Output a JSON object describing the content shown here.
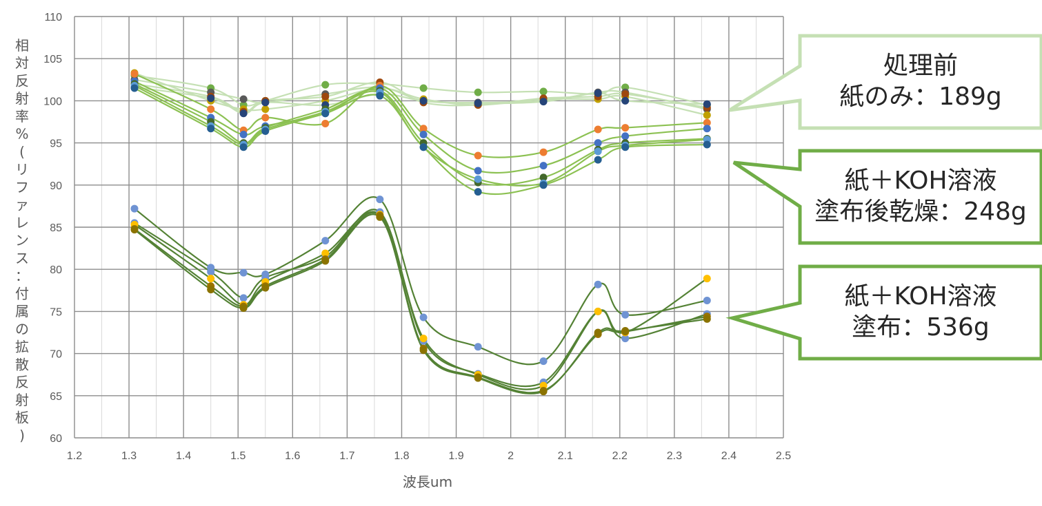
{
  "chart_data": {
    "type": "scatter",
    "xlabel": "波長um",
    "ylabel": "相対反射率%(リファレンス：付属の拡散反射板)",
    "xlim": [
      1.2,
      2.5
    ],
    "ylim": [
      60,
      110
    ],
    "xticks": [
      "1.2",
      "1.3",
      "1.4",
      "1.5",
      "1.6",
      "1.7",
      "1.8",
      "1.9",
      "2",
      "2.1",
      "2.2",
      "2.3",
      "2.4",
      "2.5"
    ],
    "yticks": [
      "60",
      "65",
      "70",
      "75",
      "80",
      "85",
      "90",
      "95",
      "100",
      "105",
      "110"
    ],
    "grid": true,
    "x": [
      1.31,
      1.45,
      1.51,
      1.55,
      1.66,
      1.76,
      1.84,
      1.94,
      2.06,
      2.16,
      2.21,
      2.36
    ],
    "groups": [
      {
        "callout": "処理前\n紙のみ：189g",
        "line_color": "#C5E0B4",
        "series": [
          {
            "values": [
              103.0,
              101.5,
              99.5,
              100.0,
              101.9,
              102.0,
              101.5,
              101.0,
              101.1,
              100.8,
              101.6,
              99.5
            ],
            "marker": "#70AD47"
          },
          {
            "values": [
              102.5,
              101.0,
              100.2,
              99.8,
              100.8,
              101.6,
              100.0,
              99.8,
              100.0,
              101.0,
              101.0,
              99.0
            ],
            "marker": "#595959"
          },
          {
            "values": [
              103.3,
              100.0,
              99.0,
              99.0,
              100.0,
              101.5,
              100.2,
              99.5,
              100.2,
              100.2,
              100.5,
              98.3
            ],
            "marker": "#C0A000"
          },
          {
            "values": [
              102.0,
              100.5,
              98.7,
              100.0,
              100.5,
              102.2,
              99.8,
              99.5,
              100.3,
              100.5,
              100.8,
              99.2
            ],
            "marker": "#9E480E"
          },
          {
            "values": [
              101.6,
              100.3,
              98.5,
              99.8,
              99.5,
              100.8,
              100.0,
              99.7,
              99.9,
              100.9,
              100.0,
              99.6
            ],
            "marker": "#264478"
          }
        ]
      },
      {
        "callout": "紙＋KOH溶液\n塗布後乾燥：248g",
        "line_color": "#8CC152",
        "series": [
          {
            "values": [
              103.2,
              99.0,
              96.5,
              98.0,
              97.3,
              101.8,
              96.7,
              93.5,
              93.9,
              96.6,
              96.8,
              97.4
            ],
            "marker": "#ED7D31"
          },
          {
            "values": [
              102.3,
              98.0,
              96.0,
              97.0,
              98.5,
              101.5,
              96.0,
              91.7,
              92.3,
              95.0,
              95.8,
              96.7
            ],
            "marker": "#4472C4"
          },
          {
            "values": [
              102.0,
              97.5,
              95.0,
              96.8,
              99.0,
              101.2,
              95.0,
              90.3,
              90.9,
              94.2,
              95.0,
              95.5
            ],
            "marker": "#43682B"
          },
          {
            "values": [
              101.8,
              97.0,
              94.8,
              96.6,
              98.7,
              101.0,
              94.5,
              90.7,
              90.2,
              94.0,
              94.7,
              95.4
            ],
            "marker": "#5B9BD5"
          },
          {
            "values": [
              101.5,
              96.7,
              94.5,
              96.4,
              98.5,
              100.6,
              94.5,
              89.2,
              90.0,
              93.0,
              94.5,
              94.8
            ],
            "marker": "#255E91"
          }
        ]
      },
      {
        "callout": "紙＋KOH溶液\n塗布：536g",
        "line_color": "#548235",
        "series": [
          {
            "values": [
              87.2,
              80.2,
              79.6,
              79.4,
              83.4,
              88.3,
              74.3,
              70.8,
              69.1,
              78.2,
              74.6,
              76.3
            ],
            "marker": "#6F93D3"
          },
          {
            "values": [
              85.5,
              79.7,
              76.6,
              79.0,
              81.5,
              86.8,
              71.5,
              67.6,
              66.6,
              75.0,
              71.8,
              74.7
            ],
            "marker": "#6F93D3"
          },
          {
            "values": [
              85.3,
              78.9,
              75.8,
              78.5,
              81.9,
              86.5,
              71.8,
              67.5,
              66.2,
              75.0,
              72.5,
              78.9
            ],
            "marker": "#FFC000"
          },
          {
            "values": [
              84.8,
              78.0,
              75.6,
              78.0,
              81.2,
              86.4,
              70.6,
              67.2,
              65.6,
              72.3,
              72.6,
              74.4
            ],
            "marker": "#997300"
          },
          {
            "values": [
              84.7,
              77.6,
              75.4,
              77.8,
              81.0,
              86.2,
              70.4,
              67.1,
              65.5,
              72.5,
              72.7,
              74.1
            ],
            "marker": "#8B7300"
          }
        ]
      }
    ]
  }
}
